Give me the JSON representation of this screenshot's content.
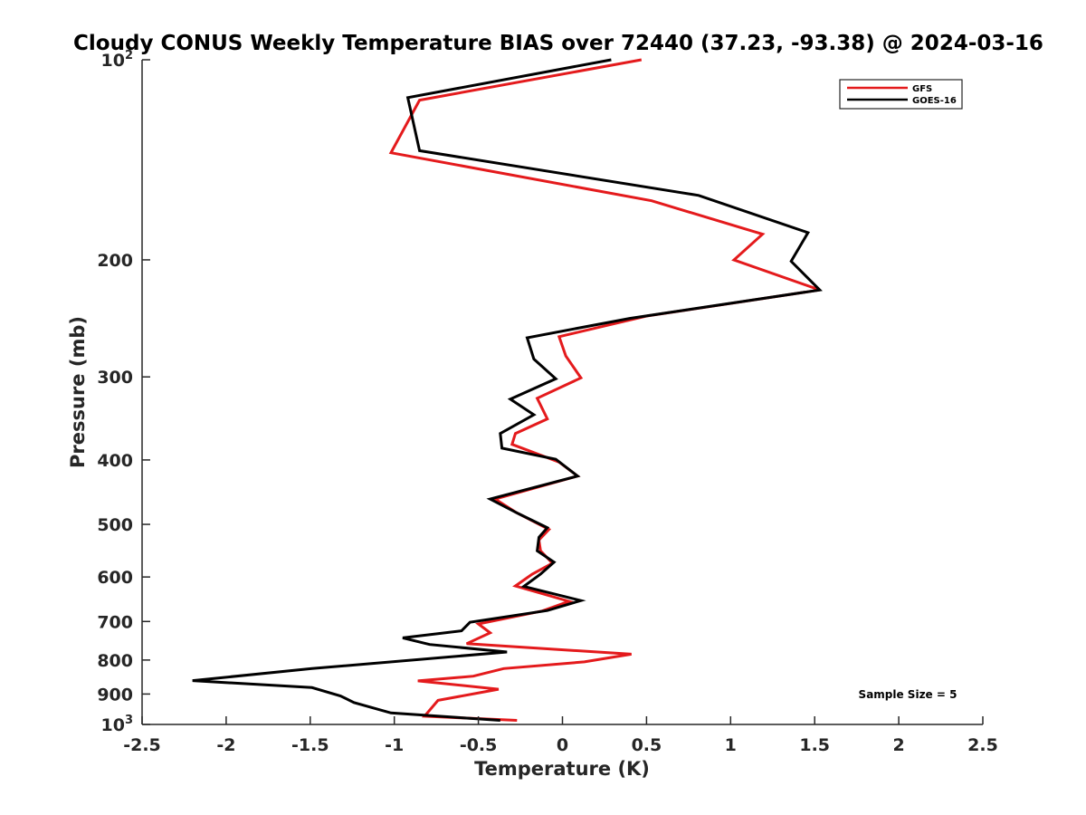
{
  "chart_data": {
    "type": "line",
    "title": "Cloudy CONUS Weekly Temperature BIAS over 72440 (37.23, -93.38) @ 2024-03-16",
    "xlabel": "Temperature (K)",
    "ylabel": "Pressure (mb)",
    "xlim": [
      -2.5,
      2.5
    ],
    "ylim": [
      100,
      1000
    ],
    "y_scale": "log",
    "y_reversed": true,
    "grid": false,
    "legend_position": "top-right",
    "x_ticks": [
      -2.5,
      -2,
      -1.5,
      -1,
      -0.5,
      0,
      0.5,
      1,
      1.5,
      2,
      2.5
    ],
    "x_tick_labels": [
      "-2.5",
      "-2",
      "-1.5",
      "-1",
      "-0.5",
      "0",
      "0.5",
      "1",
      "1.5",
      "2",
      "2.5"
    ],
    "y_ticks": [
      {
        "value": 100,
        "base": "10",
        "exp": "2"
      },
      {
        "value": 200,
        "label": "200"
      },
      {
        "value": 300,
        "label": "300"
      },
      {
        "value": 400,
        "label": "400"
      },
      {
        "value": 500,
        "label": "500"
      },
      {
        "value": 600,
        "label": "600"
      },
      {
        "value": 700,
        "label": "700"
      },
      {
        "value": 800,
        "label": "800"
      },
      {
        "value": 900,
        "label": "900"
      },
      {
        "value": 1000,
        "base": "10",
        "exp": "3"
      }
    ],
    "annotation": "Sample Size = 5",
    "series": [
      {
        "name": "GFS",
        "color": "#e41a1c",
        "points": [
          {
            "x": 0.47,
            "y": 100
          },
          {
            "x": -0.85,
            "y": 115
          },
          {
            "x": -1.02,
            "y": 138
          },
          {
            "x": 0.53,
            "y": 163
          },
          {
            "x": 1.19,
            "y": 183
          },
          {
            "x": 1.02,
            "y": 200
          },
          {
            "x": 1.53,
            "y": 222
          },
          {
            "x": 0.5,
            "y": 243
          },
          {
            "x": -0.02,
            "y": 261
          },
          {
            "x": 0.02,
            "y": 279
          },
          {
            "x": 0.11,
            "y": 301
          },
          {
            "x": -0.15,
            "y": 323
          },
          {
            "x": -0.09,
            "y": 347
          },
          {
            "x": -0.28,
            "y": 365
          },
          {
            "x": -0.3,
            "y": 379
          },
          {
            "x": -0.02,
            "y": 403
          },
          {
            "x": 0.09,
            "y": 423
          },
          {
            "x": -0.4,
            "y": 458
          },
          {
            "x": -0.28,
            "y": 479
          },
          {
            "x": -0.08,
            "y": 509
          },
          {
            "x": -0.14,
            "y": 528
          },
          {
            "x": -0.13,
            "y": 548
          },
          {
            "x": -0.06,
            "y": 572
          },
          {
            "x": -0.18,
            "y": 594
          },
          {
            "x": -0.28,
            "y": 619
          },
          {
            "x": 0.04,
            "y": 653
          },
          {
            "x": -0.12,
            "y": 675
          },
          {
            "x": -0.5,
            "y": 706
          },
          {
            "x": -0.43,
            "y": 728
          },
          {
            "x": -0.57,
            "y": 756
          },
          {
            "x": 0.41,
            "y": 784
          },
          {
            "x": 0.13,
            "y": 805
          },
          {
            "x": -0.35,
            "y": 824
          },
          {
            "x": -0.53,
            "y": 846
          },
          {
            "x": -0.86,
            "y": 860
          },
          {
            "x": -0.38,
            "y": 885
          },
          {
            "x": -0.74,
            "y": 920
          },
          {
            "x": -0.82,
            "y": 972
          },
          {
            "x": -0.27,
            "y": 986
          }
        ]
      },
      {
        "name": "GOES-16",
        "color": "#000000",
        "points": [
          {
            "x": 0.29,
            "y": 100
          },
          {
            "x": -0.92,
            "y": 114
          },
          {
            "x": -0.85,
            "y": 137
          },
          {
            "x": 0.81,
            "y": 160
          },
          {
            "x": 1.46,
            "y": 182
          },
          {
            "x": 1.36,
            "y": 201
          },
          {
            "x": 1.53,
            "y": 222
          },
          {
            "x": 0.4,
            "y": 245
          },
          {
            "x": -0.21,
            "y": 262
          },
          {
            "x": -0.17,
            "y": 282
          },
          {
            "x": -0.04,
            "y": 302
          },
          {
            "x": -0.31,
            "y": 324
          },
          {
            "x": -0.17,
            "y": 342
          },
          {
            "x": -0.37,
            "y": 365
          },
          {
            "x": -0.36,
            "y": 384
          },
          {
            "x": -0.04,
            "y": 399
          },
          {
            "x": 0.09,
            "y": 423
          },
          {
            "x": -0.43,
            "y": 458
          },
          {
            "x": -0.26,
            "y": 482
          },
          {
            "x": -0.09,
            "y": 506
          },
          {
            "x": -0.14,
            "y": 523
          },
          {
            "x": -0.15,
            "y": 548
          },
          {
            "x": -0.05,
            "y": 570
          },
          {
            "x": -0.13,
            "y": 594
          },
          {
            "x": -0.23,
            "y": 620
          },
          {
            "x": 0.11,
            "y": 651
          },
          {
            "x": -0.09,
            "y": 674
          },
          {
            "x": -0.55,
            "y": 702
          },
          {
            "x": -0.6,
            "y": 723
          },
          {
            "x": -0.95,
            "y": 741
          },
          {
            "x": -0.79,
            "y": 758
          },
          {
            "x": -0.33,
            "y": 778
          },
          {
            "x": -1.49,
            "y": 824
          },
          {
            "x": -2.2,
            "y": 859
          },
          {
            "x": -1.49,
            "y": 880
          },
          {
            "x": -1.32,
            "y": 906
          },
          {
            "x": -1.24,
            "y": 927
          },
          {
            "x": -1.02,
            "y": 961
          },
          {
            "x": -0.37,
            "y": 986
          }
        ]
      }
    ]
  }
}
